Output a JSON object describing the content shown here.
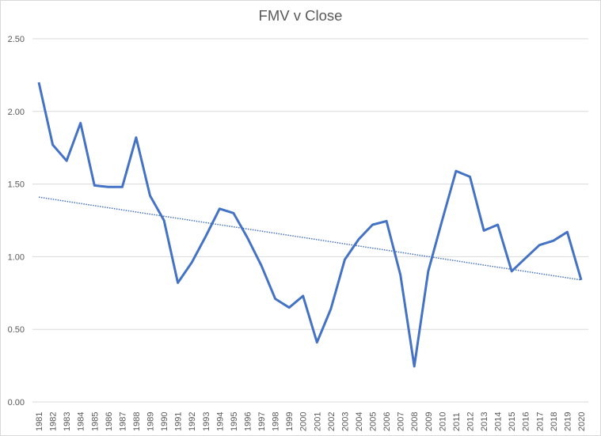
{
  "chart_data": {
    "type": "line",
    "title": "FMV v Close",
    "xlabel": "",
    "ylabel": "",
    "ylim": [
      0,
      2.5
    ],
    "yticks": [
      "0.00",
      "0.50",
      "1.00",
      "1.50",
      "2.00",
      "2.50"
    ],
    "grid": true,
    "legend": "none",
    "categories": [
      "1981",
      "1982",
      "1983",
      "1984",
      "1985",
      "1986",
      "1987",
      "1988",
      "1989",
      "1990",
      "1991",
      "1992",
      "1993",
      "1994",
      "1995",
      "1996",
      "1997",
      "1998",
      "1999",
      "2000",
      "2001",
      "2002",
      "2003",
      "2004",
      "2005",
      "2006",
      "2007",
      "2008",
      "2009",
      "2010",
      "2011",
      "2012",
      "2013",
      "2014",
      "2015",
      "2016",
      "2017",
      "2018",
      "2019",
      "2020"
    ],
    "series": [
      {
        "name": "FMV v Close",
        "color": "#4472c4",
        "values": [
          2.2,
          1.77,
          1.66,
          1.92,
          1.49,
          1.48,
          1.48,
          1.82,
          1.42,
          1.25,
          0.82,
          0.96,
          1.14,
          1.33,
          1.3,
          1.13,
          0.94,
          0.71,
          0.65,
          0.73,
          0.41,
          0.64,
          0.98,
          1.12,
          1.22,
          1.245,
          0.875,
          0.245,
          0.9,
          1.25,
          1.59,
          1.55,
          1.18,
          1.22,
          0.9,
          0.99,
          1.08,
          1.11,
          1.17,
          0.84
        ]
      },
      {
        "name": "Linear trendline",
        "color": "#4472c4",
        "style": "dotted",
        "values_endpoints": [
          1.41,
          0.84
        ]
      }
    ]
  }
}
